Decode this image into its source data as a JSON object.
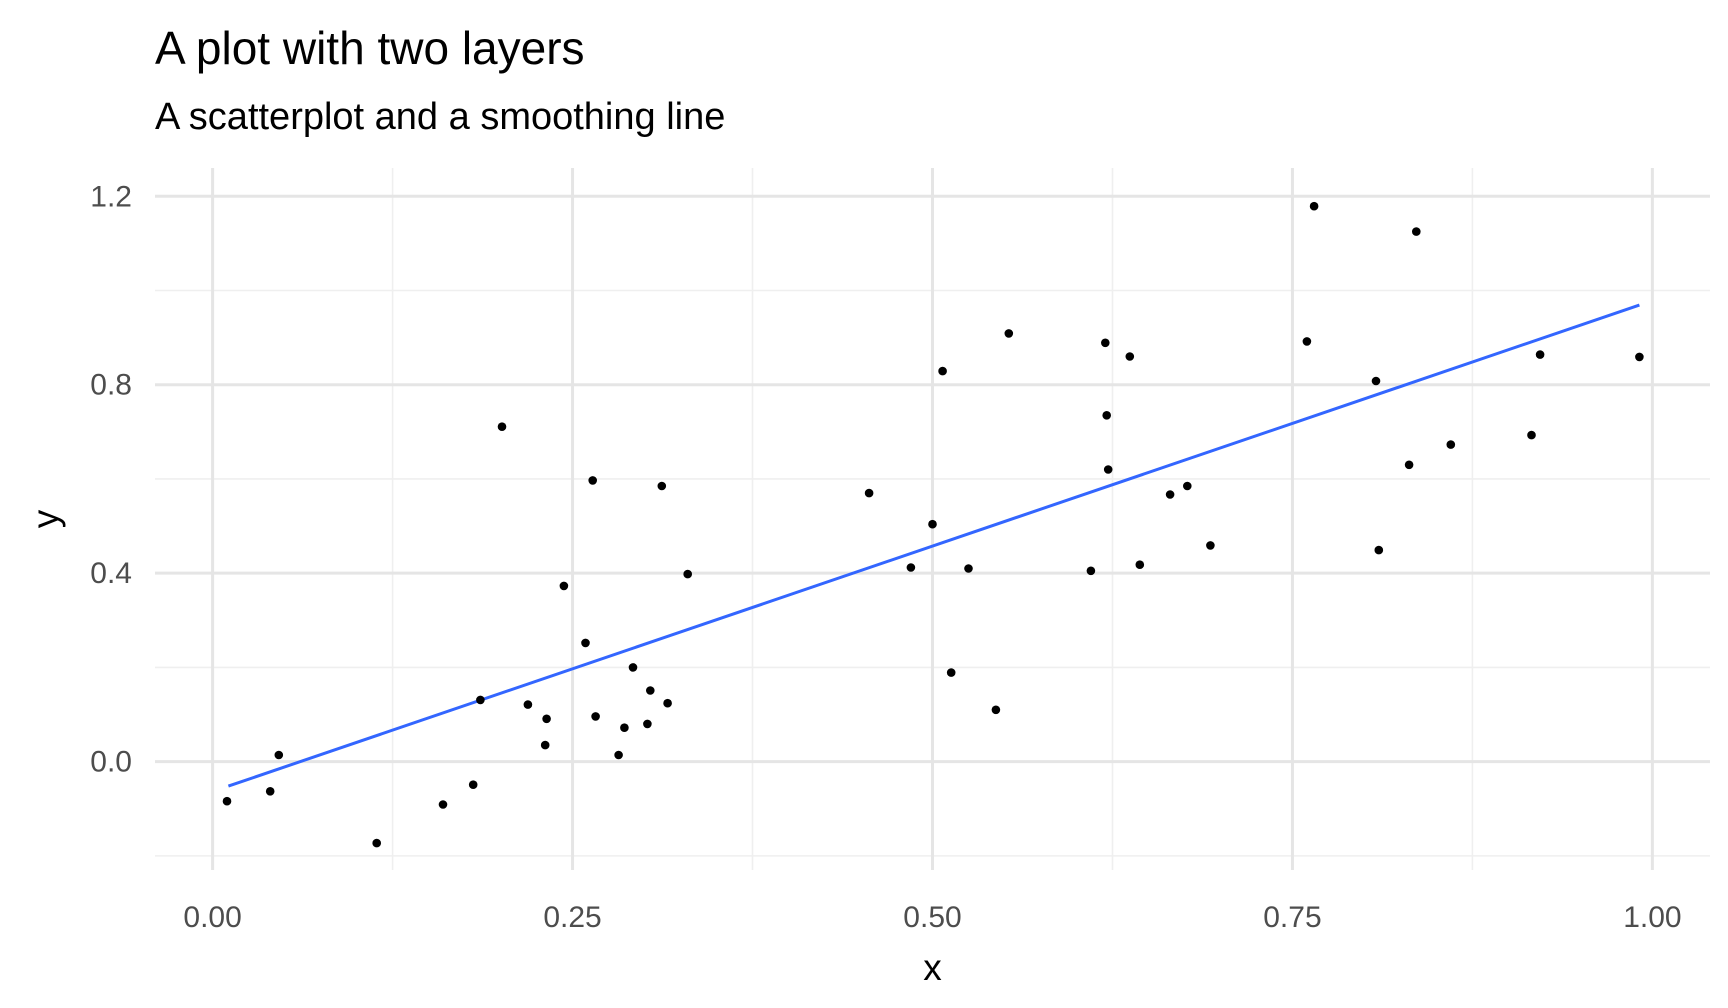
{
  "chart_data": {
    "type": "scatter",
    "title": "A plot with two layers",
    "subtitle": "A scatterplot and a smoothing line",
    "xlabel": "x",
    "ylabel": "y",
    "xlim": [
      -0.04,
      1.04
    ],
    "ylim": [
      -0.23,
      1.26
    ],
    "x_ticks": [
      0,
      0.25,
      0.5,
      0.75,
      1
    ],
    "x_tick_labels": [
      "0.00",
      "0.25",
      "0.50",
      "0.75",
      "1.00"
    ],
    "y_ticks": [
      0,
      0.4,
      0.8,
      1.2
    ],
    "y_tick_labels": [
      "0.0",
      "0.4",
      "0.8",
      "1.2"
    ],
    "grid": true,
    "legend": "none",
    "colors": {
      "points": "#000000",
      "smoothing_line": "#3366ff",
      "grid": "#e5e5e5"
    },
    "series": [
      {
        "type": "scatter",
        "points": [
          [
            0.01,
            -0.084
          ],
          [
            0.04,
            -0.063
          ],
          [
            0.046,
            0.014
          ],
          [
            0.114,
            -0.173
          ],
          [
            0.16,
            -0.091
          ],
          [
            0.181,
            -0.049
          ],
          [
            0.186,
            0.131
          ],
          [
            0.201,
            0.711
          ],
          [
            0.219,
            0.121
          ],
          [
            0.231,
            0.035
          ],
          [
            0.232,
            0.091
          ],
          [
            0.244,
            0.373
          ],
          [
            0.259,
            0.252
          ],
          [
            0.264,
            0.597
          ],
          [
            0.266,
            0.096
          ],
          [
            0.282,
            0.014
          ],
          [
            0.286,
            0.072
          ],
          [
            0.292,
            0.2
          ],
          [
            0.302,
            0.08
          ],
          [
            0.304,
            0.151
          ],
          [
            0.312,
            0.585
          ],
          [
            0.316,
            0.124
          ],
          [
            0.33,
            0.398
          ],
          [
            0.456,
            0.57
          ],
          [
            0.485,
            0.412
          ],
          [
            0.5,
            0.504
          ],
          [
            0.507,
            0.829
          ],
          [
            0.513,
            0.189
          ],
          [
            0.525,
            0.41
          ],
          [
            0.544,
            0.11
          ],
          [
            0.553,
            0.909
          ],
          [
            0.61,
            0.405
          ],
          [
            0.62,
            0.889
          ],
          [
            0.621,
            0.735
          ],
          [
            0.622,
            0.62
          ],
          [
            0.637,
            0.86
          ],
          [
            0.644,
            0.418
          ],
          [
            0.665,
            0.567
          ],
          [
            0.677,
            0.585
          ],
          [
            0.693,
            0.459
          ],
          [
            0.76,
            0.892
          ],
          [
            0.765,
            1.179
          ],
          [
            0.808,
            0.808
          ],
          [
            0.81,
            0.449
          ],
          [
            0.831,
            0.63
          ],
          [
            0.836,
            1.125
          ],
          [
            0.86,
            0.673
          ],
          [
            0.916,
            0.693
          ],
          [
            0.922,
            0.864
          ],
          [
            0.991,
            0.859
          ]
        ]
      },
      {
        "type": "line",
        "points": [
          [
            0.011,
            -0.052
          ],
          [
            0.991,
            0.969
          ]
        ]
      }
    ]
  }
}
